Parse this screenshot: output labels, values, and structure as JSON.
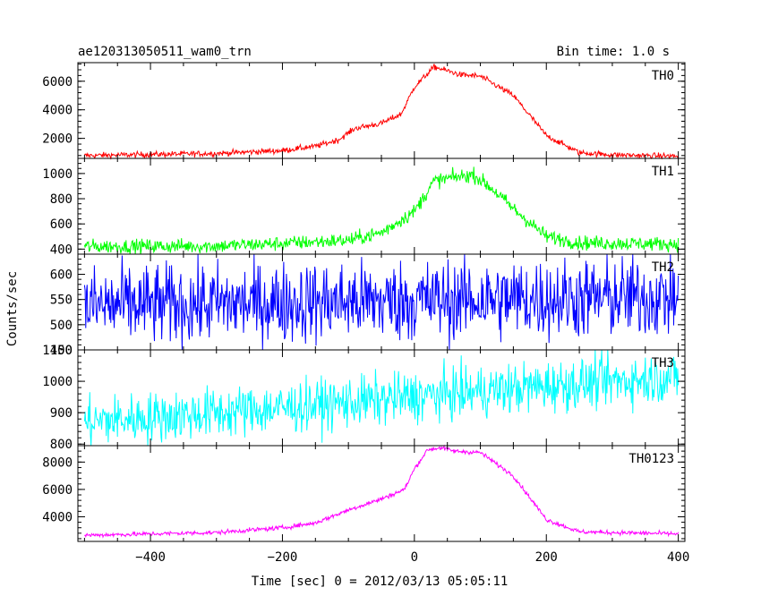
{
  "header": {
    "title": "ae120313050511_wam0_trn",
    "bin_time": "Bin time: 1.0 s"
  },
  "chart_data": {
    "type": "line",
    "xlabel": "Time [sec] 0 = 2012/03/13 05:05:11",
    "ylabel": "Counts/sec",
    "xlim": [
      -510,
      410
    ],
    "x_ticks": [
      -400,
      -200,
      0,
      200,
      400
    ],
    "x_tick_labels": [
      "−400",
      "−200",
      "0",
      "200",
      "400"
    ],
    "x_range": [
      -500,
      400
    ],
    "panels": [
      {
        "name": "TH0",
        "color": "#ff0000",
        "ylim": [
          600,
          7300
        ],
        "y_ticks": [
          2000,
          4000,
          6000
        ],
        "y_tick_labels": [
          "2000",
          "4000",
          "6000"
        ],
        "noise": 100,
        "profile": [
          [
            -500,
            800
          ],
          [
            -300,
            950
          ],
          [
            -200,
            1150
          ],
          [
            -150,
            1450
          ],
          [
            -115,
            1900
          ],
          [
            -90,
            2700
          ],
          [
            -50,
            3050
          ],
          [
            -20,
            3700
          ],
          [
            0,
            5600
          ],
          [
            30,
            7000
          ],
          [
            45,
            6800
          ],
          [
            70,
            6450
          ],
          [
            100,
            6350
          ],
          [
            150,
            5000
          ],
          [
            200,
            2200
          ],
          [
            250,
            1000
          ],
          [
            300,
            850
          ],
          [
            400,
            750
          ]
        ]
      },
      {
        "name": "TH1",
        "color": "#00ff00",
        "ylim": [
          360,
          1120
        ],
        "y_ticks": [
          400,
          600,
          800,
          1000
        ],
        "y_tick_labels": [
          "400",
          "600",
          "800",
          "1000"
        ],
        "noise": 28,
        "profile": [
          [
            -500,
            420
          ],
          [
            -300,
            425
          ],
          [
            -200,
            445
          ],
          [
            -100,
            470
          ],
          [
            -50,
            530
          ],
          [
            0,
            700
          ],
          [
            30,
            940
          ],
          [
            60,
            970
          ],
          [
            90,
            990
          ],
          [
            120,
            870
          ],
          [
            150,
            720
          ],
          [
            200,
            500
          ],
          [
            250,
            450
          ],
          [
            400,
            440
          ]
        ]
      },
      {
        "name": "TH2",
        "color": "#0000ff",
        "ylim": [
          450,
          640
        ],
        "y_ticks": [
          450,
          500,
          550,
          600
        ],
        "y_tick_labels": [
          "450",
          "500",
          "550",
          "600"
        ],
        "noise": 40,
        "profile": [
          [
            -500,
            537
          ],
          [
            0,
            548
          ],
          [
            400,
            555
          ]
        ]
      },
      {
        "name": "TH3",
        "color": "#00ffff",
        "ylim": [
          795,
          1100
        ],
        "y_ticks": [
          800,
          900,
          1000,
          1100
        ],
        "y_tick_labels": [
          "800",
          "900",
          "1000",
          "1100"
        ],
        "noise": 40,
        "profile": [
          [
            -500,
            870
          ],
          [
            -200,
            915
          ],
          [
            0,
            950
          ],
          [
            200,
            985
          ],
          [
            400,
            1015
          ]
        ]
      },
      {
        "name": "TH0123",
        "color": "#ff00ff",
        "ylim": [
          2200,
          9200
        ],
        "y_ticks": [
          4000,
          6000,
          8000
        ],
        "y_tick_labels": [
          "4000",
          "6000",
          "8000"
        ],
        "noise": 80,
        "profile": [
          [
            -500,
            2650
          ],
          [
            -300,
            2850
          ],
          [
            -200,
            3200
          ],
          [
            -150,
            3550
          ],
          [
            -100,
            4500
          ],
          [
            -50,
            5300
          ],
          [
            -15,
            6000
          ],
          [
            0,
            7500
          ],
          [
            20,
            8900
          ],
          [
            40,
            9050
          ],
          [
            60,
            8800
          ],
          [
            100,
            8700
          ],
          [
            150,
            7000
          ],
          [
            200,
            3800
          ],
          [
            250,
            2900
          ],
          [
            400,
            2750
          ]
        ]
      }
    ]
  }
}
